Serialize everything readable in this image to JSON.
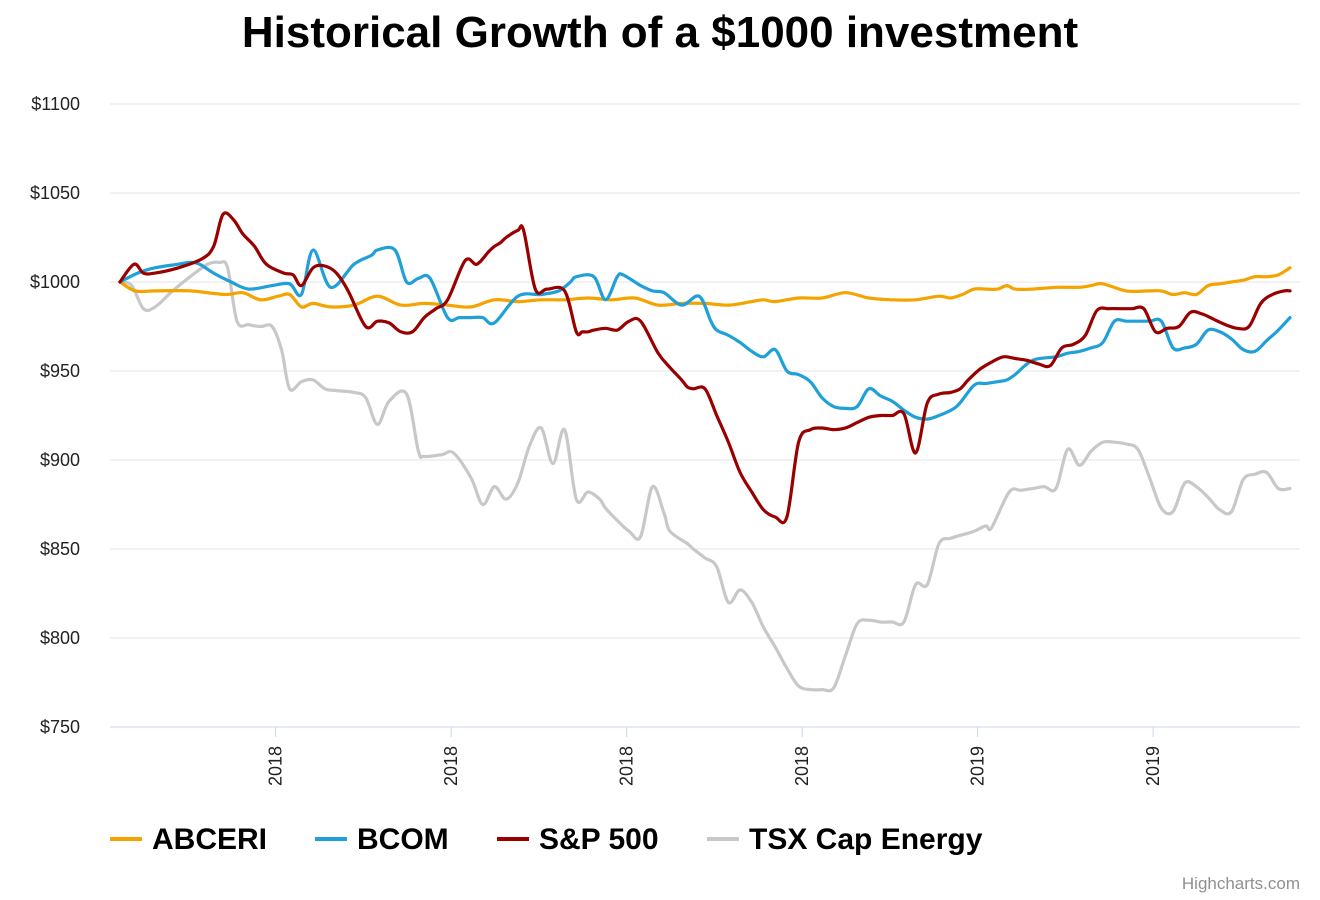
{
  "chart_data": {
    "type": "line",
    "title": "Historical Growth of a $1000 investment",
    "xlabel": "",
    "ylabel": "",
    "ylim": [
      750,
      1100
    ],
    "ytick_values": [
      750,
      800,
      850,
      900,
      950,
      1000,
      1050,
      1100
    ],
    "ytick_labels": [
      "$750",
      "$800",
      "$850",
      "$900",
      "$950",
      "$1000",
      "$1050",
      "$1100"
    ],
    "xlim": [
      0,
      100
    ],
    "xtick_positions": [
      13.3,
      28.3,
      43.3,
      58.3,
      73.3,
      88.3
    ],
    "xtick_labels": [
      "2018",
      "2018",
      "2018",
      "2018",
      "2019",
      "2019"
    ],
    "grid": true,
    "legend_position": "bottom-left",
    "credits": "Highcharts.com",
    "series": [
      {
        "name": "ABCERI",
        "color": "#f4a300",
        "x": [
          0,
          1.3,
          3,
          6,
          9,
          10.5,
          12,
          13.5,
          14.5,
          15.5,
          16.5,
          18,
          20,
          22,
          24,
          26,
          28,
          30,
          32,
          34,
          36,
          38,
          40,
          42,
          44,
          46,
          48,
          50,
          52,
          54,
          55,
          56,
          58,
          60,
          62,
          64,
          66,
          68,
          70,
          71,
          72,
          73,
          74,
          75,
          75.8,
          76.5,
          78,
          80,
          82,
          83,
          84,
          86,
          88,
          89,
          90,
          91,
          92,
          93,
          94,
          95,
          96,
          97,
          98,
          99,
          100
        ],
        "values": [
          1000,
          995,
          995,
          995,
          993,
          994,
          990,
          992,
          993,
          986,
          988,
          986,
          987,
          992,
          987,
          988,
          987,
          986,
          990,
          989,
          990,
          990,
          991,
          990,
          991,
          987,
          988,
          988,
          987,
          989,
          990,
          989,
          991,
          991,
          994,
          991,
          990,
          990,
          992,
          991,
          993,
          996,
          996,
          996,
          998,
          996,
          996,
          997,
          997,
          998,
          999,
          995,
          995,
          995,
          993,
          994,
          993,
          998,
          999,
          1000,
          1001,
          1003,
          1003,
          1004,
          1008
        ]
      },
      {
        "name": "BCOM",
        "color": "#1fa0d8",
        "x": [
          0,
          1.5,
          3,
          5,
          6,
          6.8,
          8,
          9.5,
          11,
          13,
          14.5,
          15.5,
          16.5,
          18,
          20,
          21.5,
          22,
          23.5,
          24.5,
          25.5,
          26.5,
          28,
          29,
          30,
          31,
          32,
          34,
          36,
          37.5,
          38.5,
          39,
          40.5,
          41.5,
          42.5,
          43,
          44.5,
          45.5,
          46.5,
          48,
          49.5,
          50.5,
          51,
          52,
          53,
          54,
          55,
          56,
          57,
          58,
          59,
          60,
          61,
          62,
          63,
          64,
          65,
          66,
          67,
          68,
          69,
          70,
          71.5,
          73,
          74,
          75,
          75.8,
          76.5,
          78,
          80,
          81,
          82,
          83,
          84,
          85,
          86,
          87,
          88,
          89,
          90,
          91,
          92,
          93,
          94,
          95,
          96,
          97,
          98,
          99,
          100
        ],
        "values": [
          1000,
          1005,
          1008,
          1010,
          1011,
          1010,
          1005,
          1000,
          996,
          998,
          999,
          993,
          1018,
          997,
          1010,
          1015,
          1018,
          1018,
          1000,
          1002,
          1002,
          980,
          980,
          980,
          980,
          977,
          992,
          993,
          995,
          1000,
          1003,
          1003,
          990,
          1003,
          1004,
          998,
          995,
          994,
          987,
          992,
          978,
          973,
          970,
          966,
          961,
          958,
          962,
          950,
          948,
          944,
          935,
          930,
          929,
          930,
          940,
          936,
          933,
          928,
          924,
          923,
          925,
          930,
          942,
          943,
          944,
          945,
          948,
          956,
          958,
          960,
          961,
          963,
          966,
          978,
          978,
          978,
          978,
          978,
          963,
          963,
          965,
          973,
          972,
          968,
          962,
          961,
          967,
          973,
          980
        ]
      },
      {
        "name": "S&P 500",
        "color": "#990000",
        "x": [
          0,
          1.2,
          2,
          3,
          5,
          7,
          8,
          8.8,
          9.7,
          10.5,
          11.5,
          12.5,
          14,
          14.8,
          15.5,
          16.5,
          17.5,
          18.5,
          19.5,
          21,
          22,
          23,
          24,
          25,
          26,
          27,
          28,
          29.5,
          30.5,
          31.5,
          32,
          32.5,
          33,
          34,
          34.5,
          35.5,
          36.5,
          38,
          39,
          39.5,
          40,
          40.5,
          41.5,
          42.5,
          43.5,
          44.5,
          46,
          47,
          48,
          48.5,
          49,
          50,
          51,
          52,
          53,
          54,
          55,
          56,
          57,
          58,
          59,
          60,
          61,
          62,
          63,
          64,
          65,
          66,
          67,
          68,
          69,
          70,
          71,
          71.8,
          72.5,
          73.5,
          74.5,
          75.5,
          76.5,
          77.5,
          78.5,
          79.5,
          80.5,
          81.5,
          82.5,
          83.5,
          84.5,
          85.5,
          86.5,
          87.5,
          88.5,
          89.5,
          90.5,
          91.5,
          92.5,
          93.5,
          94.5,
          95.5,
          96.5,
          97.5,
          98.5,
          99.5,
          100
        ],
        "values": [
          1000,
          1010,
          1005,
          1005,
          1008,
          1013,
          1020,
          1038,
          1035,
          1027,
          1020,
          1010,
          1005,
          1004,
          998,
          1008,
          1009,
          1005,
          995,
          975,
          978,
          977,
          972,
          972,
          980,
          985,
          990,
          1012,
          1010,
          1017,
          1020,
          1022,
          1025,
          1029,
          1029,
          996,
          996,
          995,
          972,
          972,
          972,
          973,
          974,
          973,
          978,
          978,
          960,
          952,
          945,
          941,
          940,
          940,
          925,
          910,
          893,
          882,
          872,
          868,
          868,
          910,
          917,
          918,
          917,
          918,
          921,
          924,
          925,
          925,
          926,
          904,
          932,
          937,
          938,
          940,
          945,
          951,
          955,
          958,
          957,
          956,
          954,
          953,
          963,
          965,
          970,
          984,
          985,
          985,
          985,
          985,
          972,
          974,
          975,
          983,
          982,
          979,
          976,
          974,
          975,
          988,
          993,
          995,
          995
        ]
      },
      {
        "name": "TSX Cap Energy",
        "color": "#c8c8c8",
        "x": [
          0,
          1,
          2,
          3,
          4.5,
          6,
          7.5,
          8.5,
          9.2,
          10,
          11,
          12,
          13,
          13.8,
          14.5,
          15.5,
          16.5,
          17.5,
          18.5,
          20,
          21,
          22,
          23,
          24.5,
          25.5,
          26,
          27.5,
          28.5,
          30,
          31,
          32,
          33,
          34,
          35,
          36,
          37,
          38,
          39,
          40,
          41,
          41.5,
          42.5,
          43.5,
          44.5,
          45.5,
          46.5,
          47,
          48.5,
          49,
          50,
          51,
          52,
          53,
          54,
          55,
          56,
          57,
          58,
          59,
          60,
          61,
          62,
          63,
          64,
          65,
          66,
          67,
          68,
          69,
          70,
          71,
          72,
          73,
          74,
          74.5,
          76,
          77,
          78,
          79,
          80,
          81,
          82,
          83,
          84,
          85,
          86,
          87,
          88,
          89,
          90,
          91,
          92,
          93,
          94,
          95,
          96,
          97,
          98,
          99,
          100
        ],
        "values": [
          1000,
          998,
          985,
          986,
          995,
          1003,
          1010,
          1011,
          1008,
          978,
          976,
          975,
          975,
          962,
          940,
          944,
          945,
          940,
          939,
          938,
          935,
          920,
          933,
          937,
          905,
          902,
          903,
          904,
          890,
          875,
          885,
          878,
          887,
          908,
          918,
          898,
          917,
          878,
          882,
          878,
          873,
          866,
          860,
          857,
          885,
          870,
          860,
          853,
          850,
          845,
          840,
          820,
          827,
          820,
          806,
          795,
          783,
          773,
          771,
          771,
          772,
          790,
          808,
          810,
          809,
          809,
          809,
          830,
          830,
          853,
          856,
          858,
          860,
          863,
          862,
          882,
          883,
          884,
          885,
          884,
          906,
          897,
          905,
          910,
          910,
          909,
          906,
          890,
          873,
          871,
          887,
          885,
          879,
          872,
          871,
          889,
          892,
          893,
          884,
          884
        ]
      }
    ]
  }
}
